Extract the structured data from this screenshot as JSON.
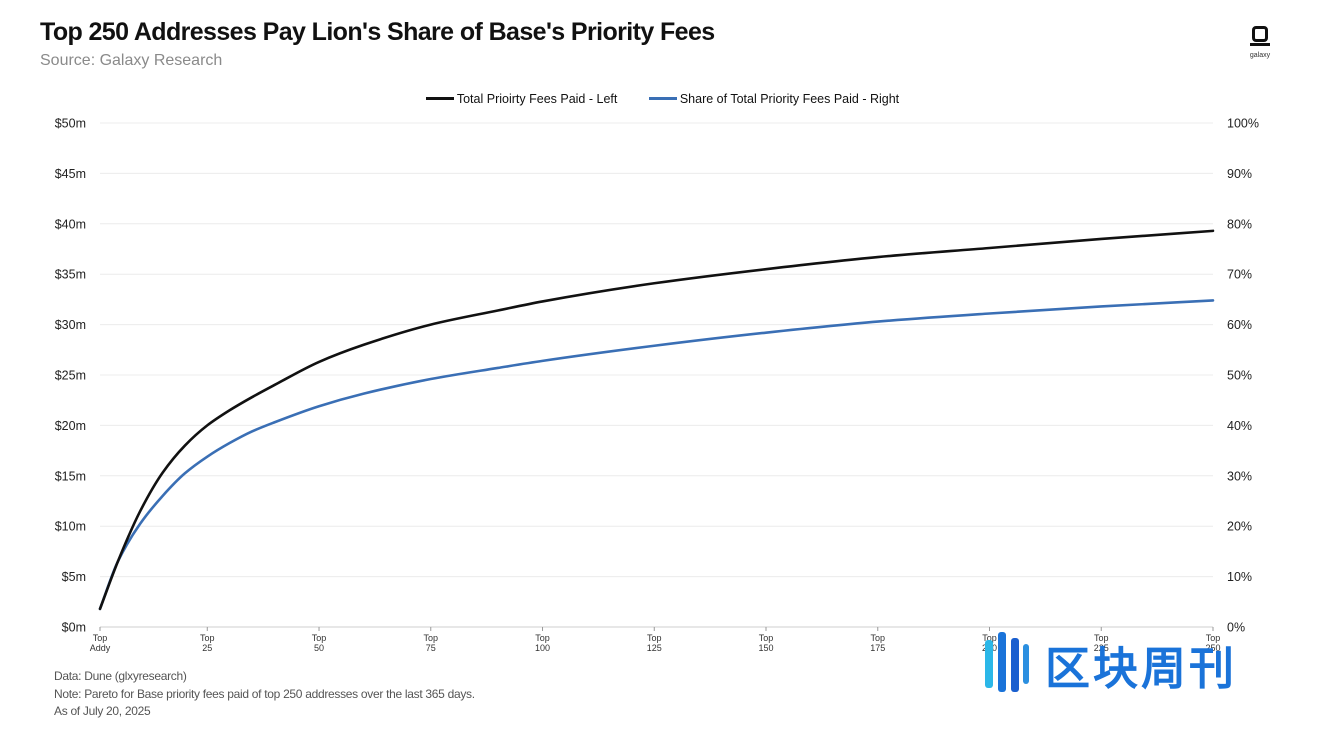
{
  "header": {
    "title": "Top 250 Addresses Pay Lion's Share of Base's Priority Fees",
    "subtitle": "Source: Galaxy Research",
    "logo_text": "galaxy"
  },
  "legend": [
    {
      "label": "Total Prioirty Fees Paid - Left",
      "color": "#111111"
    },
    {
      "label": "Share of Total Priority Fees Paid - Right",
      "color": "#3a6fb5"
    }
  ],
  "footnotes": {
    "data": "Data: Dune (glxyresearch)",
    "note": "Note: Pareto for Base priority fees paid of top 250 addresses over the last 365 days.",
    "asof": "As of July 20, 2025"
  },
  "watermark": {
    "text": "区块周刊",
    "color": "#1a73d9"
  },
  "chart_data": {
    "type": "line",
    "title": "Top 250 Addresses Pay Lion's Share of Base's Priority Fees",
    "subtitle": "Source: Galaxy Research",
    "x_ticks": [
      {
        "value": 1,
        "line1": "Top",
        "line2": "Addy"
      },
      {
        "value": 25,
        "line1": "Top",
        "line2": "25"
      },
      {
        "value": 50,
        "line1": "Top",
        "line2": "50"
      },
      {
        "value": 75,
        "line1": "Top",
        "line2": "75"
      },
      {
        "value": 100,
        "line1": "Top",
        "line2": "100"
      },
      {
        "value": 125,
        "line1": "Top",
        "line2": "125"
      },
      {
        "value": 150,
        "line1": "Top",
        "line2": "150"
      },
      {
        "value": 175,
        "line1": "Top",
        "line2": "175"
      },
      {
        "value": 200,
        "line1": "Top",
        "line2": "200"
      },
      {
        "value": 225,
        "line1": "Top",
        "line2": "225"
      },
      {
        "value": 250,
        "line1": "Top",
        "line2": "250"
      }
    ],
    "xlim": [
      1,
      250
    ],
    "y_left": {
      "lim": [
        0,
        50
      ],
      "ticks": [
        0,
        5,
        10,
        15,
        20,
        25,
        30,
        35,
        40,
        45,
        50
      ],
      "tick_labels": [
        "$0m",
        "$5m",
        "$10m",
        "$15m",
        "$20m",
        "$25m",
        "$30m",
        "$35m",
        "$40m",
        "$45m",
        "$50m"
      ]
    },
    "y_right": {
      "lim": [
        0,
        100
      ],
      "ticks": [
        0,
        10,
        20,
        30,
        40,
        50,
        60,
        70,
        80,
        90,
        100
      ],
      "tick_labels": [
        "0%",
        "10%",
        "20%",
        "30%",
        "40%",
        "50%",
        "60%",
        "70%",
        "80%",
        "90%",
        "100%"
      ]
    },
    "grid": true,
    "legend_position": "top-center",
    "series": [
      {
        "name": "Total Prioirty Fees Paid - Left",
        "axis": "left",
        "color": "#111111",
        "x": [
          1,
          5,
          10,
          15,
          20,
          25,
          30,
          35,
          40,
          50,
          60,
          75,
          90,
          100,
          125,
          150,
          175,
          200,
          225,
          250
        ],
        "y": [
          1.8,
          6.5,
          11.5,
          15.3,
          18.0,
          20.0,
          21.5,
          22.8,
          24.0,
          26.3,
          28.0,
          30.0,
          31.4,
          32.3,
          34.1,
          35.5,
          36.7,
          37.6,
          38.5,
          39.3
        ]
      },
      {
        "name": "Share of Total Priority Fees Paid - Right",
        "axis": "right",
        "color": "#3a6fb5",
        "x": [
          1,
          5,
          10,
          15,
          20,
          25,
          30,
          35,
          40,
          50,
          60,
          75,
          90,
          100,
          125,
          150,
          175,
          200,
          225,
          250
        ],
        "y": [
          3.6,
          13.0,
          20.5,
          26.0,
          30.5,
          33.8,
          36.5,
          38.8,
          40.6,
          43.8,
          46.3,
          49.2,
          51.4,
          52.8,
          55.8,
          58.4,
          60.6,
          62.2,
          63.6,
          64.8
        ]
      }
    ]
  }
}
